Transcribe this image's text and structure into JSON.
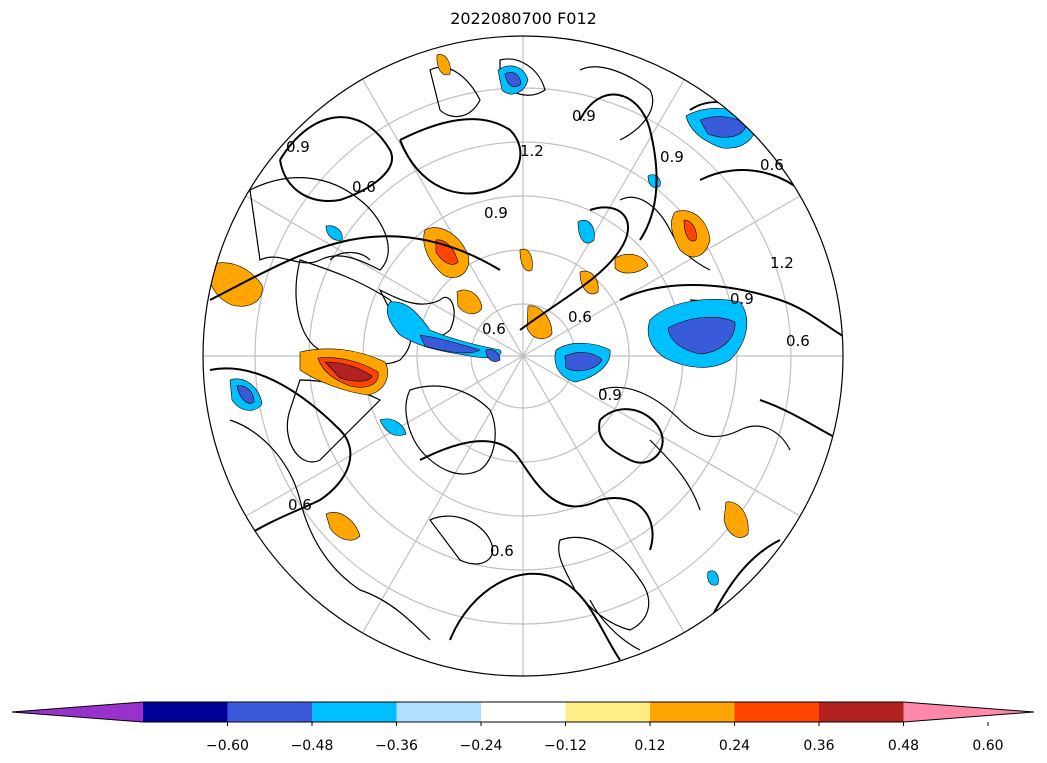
{
  "title": "2022080700 F012",
  "contour_labels": [
    "0.9",
    "0.6",
    "1.2"
  ],
  "colorbar": {
    "ticks": [
      "−0.60",
      "−0.48",
      "−0.36",
      "−0.24",
      "−0.12",
      "0.12",
      "0.24",
      "0.36",
      "0.48",
      "0.60"
    ],
    "colors": {
      "under": "#9932cc",
      "bins": [
        "#000099",
        "#3a5bd9",
        "#00bfff",
        "#b0e0ff",
        "#ffffff",
        "#ffee88",
        "#ffa500",
        "#ff4500",
        "#b22222"
      ],
      "over": "#ff88aa"
    }
  }
}
